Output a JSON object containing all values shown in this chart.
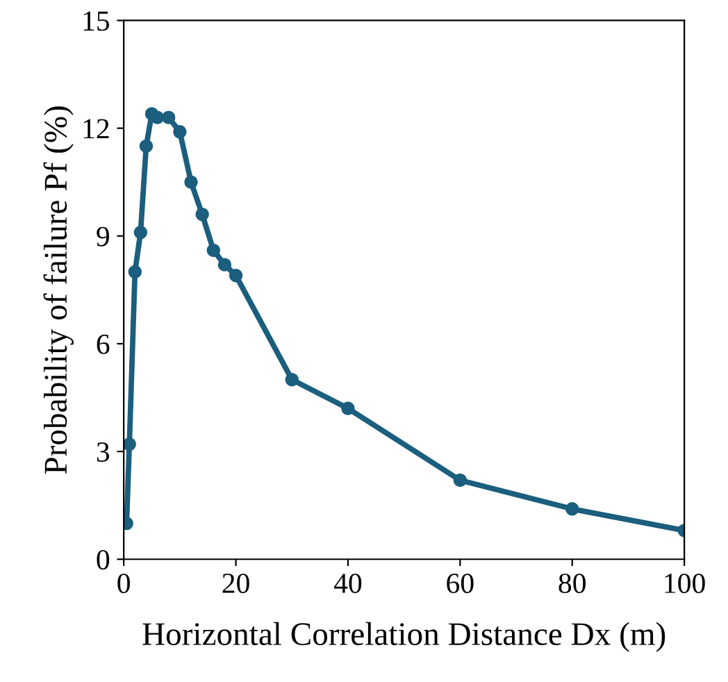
{
  "chart_data": {
    "type": "line",
    "xlabel": "Horizontal Correlation Distance Dx (m)",
    "ylabel": "Probability of failure Pf (%)",
    "x": [
      0.5,
      1,
      2,
      3,
      4,
      5,
      6,
      8,
      10,
      12,
      14,
      16,
      18,
      20,
      30,
      40,
      60,
      80,
      100
    ],
    "series": [
      {
        "color": "#1b5e7e",
        "values": [
          1.0,
          3.2,
          8.0,
          9.1,
          11.5,
          12.4,
          12.3,
          12.3,
          11.9,
          10.5,
          9.6,
          8.6,
          8.2,
          7.9,
          5.0,
          4.2,
          2.2,
          1.4,
          0.8
        ]
      }
    ],
    "xlim": [
      0,
      100
    ],
    "xticks": [
      0,
      20,
      40,
      60,
      80,
      100
    ],
    "ylim": [
      0,
      15
    ],
    "yticks": [
      0,
      3,
      6,
      9,
      12,
      15
    ],
    "marker": "circle",
    "line_style": "solid",
    "grid": false,
    "legend": false
  }
}
